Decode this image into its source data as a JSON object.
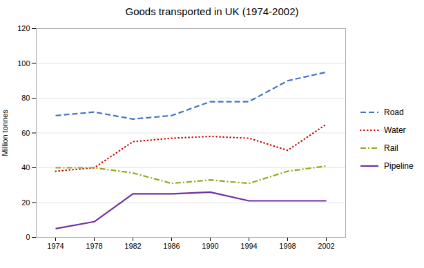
{
  "chart_data": {
    "type": "line",
    "title": "Goods transported in UK (1974-2002)",
    "ylabel": "Million tonnes",
    "x": [
      1974,
      1978,
      1982,
      1986,
      1990,
      1994,
      1998,
      2002
    ],
    "series": [
      {
        "name": "Road",
        "color": "#4472c4",
        "line_style": "dashed",
        "values": [
          70,
          72,
          68,
          70,
          78,
          78,
          90,
          95
        ]
      },
      {
        "name": "Water",
        "color": "#cc0000",
        "line_style": "dotted",
        "values": [
          38,
          40,
          55,
          57,
          58,
          57,
          50,
          65
        ]
      },
      {
        "name": "Rail",
        "color": "#92a820",
        "line_style": "dashdot",
        "values": [
          40,
          40,
          37,
          31,
          33,
          31,
          38,
          41
        ]
      },
      {
        "name": "Pipeline",
        "color": "#7030a0",
        "line_style": "solid",
        "values": [
          5,
          9,
          25,
          25,
          26,
          21,
          21,
          21
        ]
      }
    ],
    "xlim": [
      1972,
      2004
    ],
    "xticks": [
      1974,
      1978,
      1982,
      1986,
      1990,
      1994,
      1998,
      2002
    ],
    "ylim": [
      0,
      120
    ],
    "yticks": [
      0,
      20,
      40,
      60,
      80,
      100,
      120
    ],
    "grid": "y",
    "legend": "right"
  }
}
